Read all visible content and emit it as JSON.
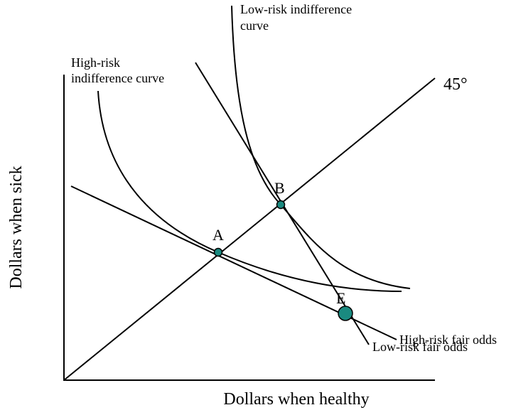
{
  "diagram": {
    "axes": {
      "x_label": "Dollars when healthy",
      "y_label": "Dollars when sick"
    },
    "lines": {
      "diagonal_label": "45°",
      "high_risk_fair_odds": "High-risk fair odds",
      "low_risk_fair_odds": "Low-risk fair odds"
    },
    "curves": {
      "low_risk_indifference": [
        "Low-risk indifference",
        "curve"
      ],
      "high_risk_indifference": [
        "High-risk",
        "indifference curve"
      ]
    },
    "points": {
      "a": "A",
      "b": "B",
      "e": "E"
    }
  }
}
